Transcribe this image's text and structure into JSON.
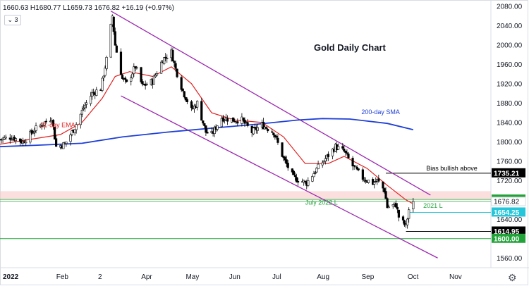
{
  "header": {
    "ohlc": "1660.63  H1680.77  L1659.73  1676.82  +16.19 (+0.97%)",
    "indicator_toggle": "⌄ 3"
  },
  "colors": {
    "candle_up": "#ffffff",
    "candle_down": "#000000",
    "ema": "#e02020",
    "sma": "#1e3fd6",
    "channel": "#9c27b0",
    "green": "#22a33a",
    "cyan": "#26c6da",
    "resistance_zone": "#f8c9c9"
  },
  "chart_data": {
    "type": "candlestick",
    "title": "Gold Daily Chart",
    "ylim": [
      1540,
      2090
    ],
    "y_ticks": [
      "2080.00",
      "2040.00",
      "2000.00",
      "1960.00",
      "1920.00",
      "1880.00",
      "1840.00",
      "1800.00",
      "1760.00",
      "1720.00",
      "1676.82",
      "1640.00",
      "1600.00",
      "1560.00"
    ],
    "x_ticks": [
      "2022",
      "Feb",
      "2",
      "Apr",
      "May",
      "Jun",
      "Jul",
      "Aug",
      "Sep",
      "Oct",
      "Nov"
    ],
    "x_tick_dates": [
      "2022-01-03",
      "2022-02-01",
      "2022-03-02",
      "2022-04-01",
      "2022-05-02",
      "2022-06-01",
      "2022-07-01",
      "2022-08-01",
      "2022-09-01",
      "2022-10-03",
      "2022-11-01"
    ],
    "x_range": [
      "2021-12-20",
      "2022-11-25"
    ],
    "close_path": [
      [
        "2021-12-20",
        1805
      ],
      [
        "2021-12-28",
        1810
      ],
      [
        "2022-01-05",
        1800
      ],
      [
        "2022-01-13",
        1825
      ],
      [
        "2022-01-20",
        1840
      ],
      [
        "2022-01-25",
        1850
      ],
      [
        "2022-01-28",
        1790
      ],
      [
        "2022-02-03",
        1795
      ],
      [
        "2022-02-10",
        1830
      ],
      [
        "2022-02-16",
        1870
      ],
      [
        "2022-02-22",
        1900
      ],
      [
        "2022-02-28",
        1910
      ],
      [
        "2022-03-04",
        1970
      ],
      [
        "2022-03-08",
        2060
      ],
      [
        "2022-03-10",
        2000
      ],
      [
        "2022-03-15",
        1930
      ],
      [
        "2022-03-18",
        1920
      ],
      [
        "2022-03-24",
        1955
      ],
      [
        "2022-03-29",
        1915
      ],
      [
        "2022-04-05",
        1925
      ],
      [
        "2022-04-12",
        1970
      ],
      [
        "2022-04-18",
        1985
      ],
      [
        "2022-04-21",
        1950
      ],
      [
        "2022-04-26",
        1905
      ],
      [
        "2022-05-02",
        1865
      ],
      [
        "2022-05-06",
        1880
      ],
      [
        "2022-05-12",
        1820
      ],
      [
        "2022-05-16",
        1815
      ],
      [
        "2022-05-23",
        1850
      ],
      [
        "2022-05-31",
        1845
      ],
      [
        "2022-06-06",
        1845
      ],
      [
        "2022-06-13",
        1820
      ],
      [
        "2022-06-20",
        1835
      ],
      [
        "2022-06-28",
        1820
      ],
      [
        "2022-07-05",
        1765
      ],
      [
        "2022-07-12",
        1725
      ],
      [
        "2022-07-21",
        1715
      ],
      [
        "2022-07-27",
        1740
      ],
      [
        "2022-08-03",
        1765
      ],
      [
        "2022-08-10",
        1790
      ],
      [
        "2022-08-16",
        1780
      ],
      [
        "2022-08-22",
        1750
      ],
      [
        "2022-08-29",
        1725
      ],
      [
        "2022-09-05",
        1715
      ],
      [
        "2022-09-08",
        1720
      ],
      [
        "2022-09-13",
        1700
      ],
      [
        "2022-09-15",
        1665
      ],
      [
        "2022-09-21",
        1670
      ],
      [
        "2022-09-23",
        1645
      ],
      [
        "2022-09-28",
        1625
      ],
      [
        "2022-09-30",
        1660
      ],
      [
        "2022-10-03",
        1676.82
      ]
    ],
    "series": [
      {
        "name": "21-day EMA",
        "values": [
          [
            "2021-12-20",
            1795
          ],
          [
            "2022-01-10",
            1805
          ],
          [
            "2022-01-31",
            1815
          ],
          [
            "2022-02-15",
            1840
          ],
          [
            "2022-03-01",
            1890
          ],
          [
            "2022-03-10",
            1935
          ],
          [
            "2022-03-20",
            1945
          ],
          [
            "2022-04-05",
            1935
          ],
          [
            "2022-04-18",
            1955
          ],
          [
            "2022-05-02",
            1920
          ],
          [
            "2022-05-16",
            1860
          ],
          [
            "2022-06-01",
            1845
          ],
          [
            "2022-06-20",
            1840
          ],
          [
            "2022-07-05",
            1810
          ],
          [
            "2022-07-20",
            1755
          ],
          [
            "2022-08-05",
            1755
          ],
          [
            "2022-08-16",
            1770
          ],
          [
            "2022-09-01",
            1745
          ],
          [
            "2022-09-15",
            1710
          ],
          [
            "2022-09-28",
            1680
          ],
          [
            "2022-10-03",
            1672
          ]
        ]
      },
      {
        "name": "200-day SMA",
        "values": [
          [
            "2021-12-20",
            1790
          ],
          [
            "2022-01-15",
            1793
          ],
          [
            "2022-02-15",
            1797
          ],
          [
            "2022-03-15",
            1810
          ],
          [
            "2022-04-15",
            1820
          ],
          [
            "2022-05-15",
            1828
          ],
          [
            "2022-06-15",
            1836
          ],
          [
            "2022-07-15",
            1845
          ],
          [
            "2022-08-01",
            1848
          ],
          [
            "2022-08-20",
            1847
          ],
          [
            "2022-09-15",
            1838
          ],
          [
            "2022-10-03",
            1825
          ]
        ]
      }
    ],
    "channel": {
      "upper": [
        [
          "2022-03-07",
          2070
        ],
        [
          "2022-10-15",
          1690
        ]
      ],
      "lower": [
        [
          "2022-03-14",
          1895
        ],
        [
          "2022-10-20",
          1560
        ]
      ]
    },
    "levels": [
      {
        "price": 1735.21,
        "label": "1735.21",
        "note": "Bias bullish above",
        "color": "#000000",
        "from": "2022-09-14"
      },
      {
        "price": 1680.95,
        "label": "1680.95",
        "note": "",
        "color": "#22a33a",
        "from": "2021-12-20"
      },
      {
        "price": 1676.9,
        "label": "1676.90",
        "note": "",
        "color": "#22a33a",
        "from": "2021-12-20"
      },
      {
        "price": 1654.25,
        "label": "1654.25",
        "note": "2021 L",
        "color": "#26c6da",
        "from": "2022-09-30"
      },
      {
        "price": 1614.95,
        "label": "1614.95",
        "note": "",
        "color": "#000000",
        "from": "2022-09-28"
      },
      {
        "price": 1600.0,
        "label": "1600.00",
        "note": "",
        "color": "#22a33a",
        "from": "2021-12-20"
      }
    ],
    "zone": {
      "from_price": 1680.95,
      "to_price": 1698
    },
    "annotations": [
      {
        "text": "Gold Daily Chart",
        "kind": "title"
      },
      {
        "text": "21-day EMA",
        "color": "#e02020",
        "date": "2022-01-17",
        "price": 1830
      },
      {
        "text": "200-day SMA",
        "color": "#1e3fd6",
        "date": "2022-08-28",
        "price": 1857
      },
      {
        "text": "July 2022 L",
        "color": "#22a33a",
        "date": "2022-07-20",
        "price": 1670
      },
      {
        "text": "2021 L",
        "color": "#22a33a",
        "date": "2022-10-10",
        "price": 1664
      },
      {
        "text": "Bias bullish above",
        "color": "#000000",
        "date": "2022-10-12",
        "price": 1741
      }
    ],
    "last_price": {
      "value": 1676.82,
      "label": "1676.82"
    }
  }
}
